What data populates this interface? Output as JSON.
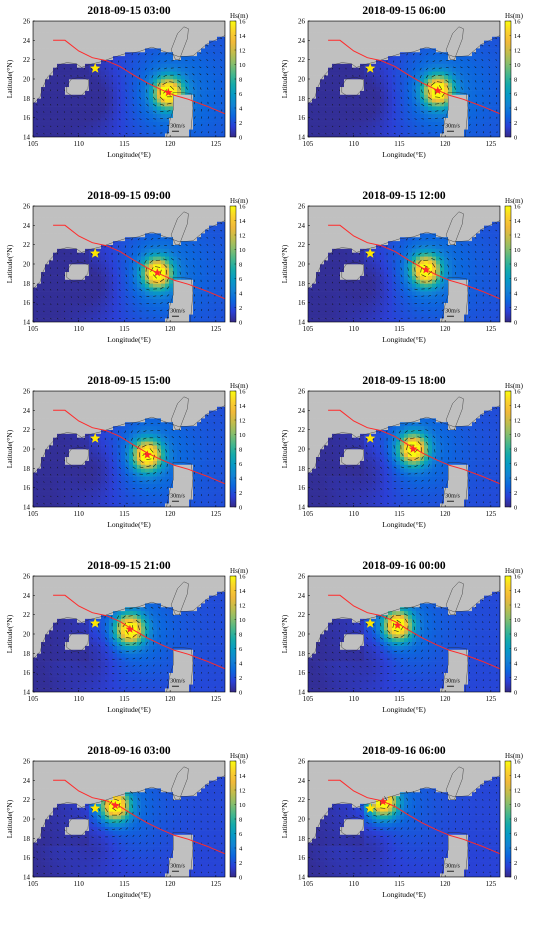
{
  "chart_data": [
    {
      "type": "heatmap",
      "title": "2018-09-15 03:00",
      "xlabel": "Longitude(°E)",
      "ylabel": "Latitude(°N)",
      "colorbar_label": "Hs(m)",
      "xlim": [
        105,
        126
      ],
      "ylim": [
        14,
        26
      ],
      "clim": [
        0,
        16
      ],
      "xticks": [
        105,
        110,
        115,
        120,
        125
      ],
      "yticks": [
        14,
        16,
        18,
        20,
        22,
        24,
        26
      ],
      "cticks": [
        0,
        2,
        4,
        6,
        8,
        10,
        12,
        14,
        16
      ],
      "vector_scale_label": "30m/s",
      "typhoon_center": [
        119.8,
        18.6
      ],
      "station": [
        111.8,
        21.1
      ]
    },
    {
      "type": "heatmap",
      "title": "2018-09-15 06:00",
      "xlabel": "Longitude(°E)",
      "ylabel": "Latitude(°N)",
      "colorbar_label": "Hs(m)",
      "xlim": [
        105,
        126
      ],
      "ylim": [
        14,
        26
      ],
      "clim": [
        0,
        16
      ],
      "xticks": [
        105,
        110,
        115,
        120,
        125
      ],
      "yticks": [
        14,
        16,
        18,
        20,
        22,
        24,
        26
      ],
      "cticks": [
        0,
        2,
        4,
        6,
        8,
        10,
        12,
        14,
        16
      ],
      "vector_scale_label": "30m/s",
      "typhoon_center": [
        119.2,
        18.8
      ],
      "station": [
        111.8,
        21.1
      ]
    },
    {
      "type": "heatmap",
      "title": "2018-09-15 09:00",
      "xlabel": "Longitude(°E)",
      "ylabel": "Latitude(°N)",
      "colorbar_label": "Hs(m)",
      "xlim": [
        105,
        126
      ],
      "ylim": [
        14,
        26
      ],
      "clim": [
        0,
        16
      ],
      "xticks": [
        105,
        110,
        115,
        120,
        125
      ],
      "yticks": [
        14,
        16,
        18,
        20,
        22,
        24,
        26
      ],
      "cticks": [
        0,
        2,
        4,
        6,
        8,
        10,
        12,
        14,
        16
      ],
      "vector_scale_label": "30m/s",
      "typhoon_center": [
        118.6,
        19.1
      ],
      "station": [
        111.8,
        21.1
      ]
    },
    {
      "type": "heatmap",
      "title": "2018-09-15 12:00",
      "xlabel": "Longitude(°E)",
      "ylabel": "Latitude(°N)",
      "colorbar_label": "Hs(m)",
      "xlim": [
        105,
        126
      ],
      "ylim": [
        14,
        26
      ],
      "clim": [
        0,
        16
      ],
      "xticks": [
        105,
        110,
        115,
        120,
        125
      ],
      "yticks": [
        14,
        16,
        18,
        20,
        22,
        24,
        26
      ],
      "cticks": [
        0,
        2,
        4,
        6,
        8,
        10,
        12,
        14,
        16
      ],
      "vector_scale_label": "30m/s",
      "typhoon_center": [
        117.9,
        19.4
      ],
      "station": [
        111.8,
        21.1
      ]
    },
    {
      "type": "heatmap",
      "title": "2018-09-15 15:00",
      "xlabel": "Longitude(°E)",
      "ylabel": "Latitude(°N)",
      "colorbar_label": "Hs(m)",
      "xlim": [
        105,
        126
      ],
      "ylim": [
        14,
        26
      ],
      "clim": [
        0,
        16
      ],
      "xticks": [
        105,
        110,
        115,
        120,
        125
      ],
      "yticks": [
        14,
        16,
        18,
        20,
        22,
        24,
        26
      ],
      "cticks": [
        0,
        2,
        4,
        6,
        8,
        10,
        12,
        14,
        16
      ],
      "vector_scale_label": "30m/s",
      "typhoon_center": [
        117.5,
        19.4
      ],
      "station": [
        111.8,
        21.1
      ]
    },
    {
      "type": "heatmap",
      "title": "2018-09-15 18:00",
      "xlabel": "Longitude(°E)",
      "ylabel": "Latitude(°N)",
      "colorbar_label": "Hs(m)",
      "xlim": [
        105,
        126
      ],
      "ylim": [
        14,
        26
      ],
      "clim": [
        0,
        16
      ],
      "xticks": [
        105,
        110,
        115,
        120,
        125
      ],
      "yticks": [
        14,
        16,
        18,
        20,
        22,
        24,
        26
      ],
      "cticks": [
        0,
        2,
        4,
        6,
        8,
        10,
        12,
        14,
        16
      ],
      "vector_scale_label": "30m/s",
      "typhoon_center": [
        116.5,
        20.0
      ],
      "station": [
        111.8,
        21.1
      ]
    },
    {
      "type": "heatmap",
      "title": "2018-09-15 21:00",
      "xlabel": "Longitude(°E)",
      "ylabel": "Latitude(°N)",
      "colorbar_label": "Hs(m)",
      "xlim": [
        105,
        126
      ],
      "ylim": [
        14,
        26
      ],
      "clim": [
        0,
        16
      ],
      "xticks": [
        105,
        110,
        115,
        120,
        125
      ],
      "yticks": [
        14,
        16,
        18,
        20,
        22,
        24,
        26
      ],
      "cticks": [
        0,
        2,
        4,
        6,
        8,
        10,
        12,
        14,
        16
      ],
      "vector_scale_label": "30m/s",
      "typhoon_center": [
        115.6,
        20.5
      ],
      "station": [
        111.8,
        21.1
      ]
    },
    {
      "type": "heatmap",
      "title": "2018-09-16 00:00",
      "xlabel": "Longitude(°E)",
      "ylabel": "Latitude(°N)",
      "colorbar_label": "Hs(m)",
      "xlim": [
        105,
        126
      ],
      "ylim": [
        14,
        26
      ],
      "clim": [
        0,
        16
      ],
      "xticks": [
        105,
        110,
        115,
        120,
        125
      ],
      "yticks": [
        14,
        16,
        18,
        20,
        22,
        24,
        26
      ],
      "cticks": [
        0,
        2,
        4,
        6,
        8,
        10,
        12,
        14,
        16
      ],
      "vector_scale_label": "30m/s",
      "typhoon_center": [
        114.8,
        20.9
      ],
      "station": [
        111.8,
        21.1
      ]
    },
    {
      "type": "heatmap",
      "title": "2018-09-16 03:00",
      "xlabel": "Longitude(°E)",
      "ylabel": "Latitude(°N)",
      "colorbar_label": "Hs(m)",
      "xlim": [
        105,
        126
      ],
      "ylim": [
        14,
        26
      ],
      "clim": [
        0,
        16
      ],
      "xticks": [
        105,
        110,
        115,
        120,
        125
      ],
      "yticks": [
        14,
        16,
        18,
        20,
        22,
        24,
        26
      ],
      "cticks": [
        0,
        2,
        4,
        6,
        8,
        10,
        12,
        14,
        16
      ],
      "vector_scale_label": "30m/s",
      "typhoon_center": [
        114.0,
        21.4
      ],
      "station": [
        111.8,
        21.1
      ]
    },
    {
      "type": "heatmap",
      "title": "2018-09-16 06:00",
      "xlabel": "Longitude(°E)",
      "ylabel": "Latitude(°N)",
      "colorbar_label": "Hs(m)",
      "xlim": [
        105,
        126
      ],
      "ylim": [
        14,
        26
      ],
      "clim": [
        0,
        16
      ],
      "xticks": [
        105,
        110,
        115,
        120,
        125
      ],
      "yticks": [
        14,
        16,
        18,
        20,
        22,
        24,
        26
      ],
      "cticks": [
        0,
        2,
        4,
        6,
        8,
        10,
        12,
        14,
        16
      ],
      "vector_scale_label": "30m/s",
      "typhoon_center": [
        113.2,
        21.8
      ],
      "station": [
        111.8,
        21.1
      ]
    }
  ],
  "typhoon_track": [
    [
      107.2,
      24.0
    ],
    [
      108.5,
      24.0
    ],
    [
      110.0,
      22.9
    ],
    [
      111.5,
      22.2
    ],
    [
      113.0,
      21.9
    ],
    [
      114.5,
      21.3
    ],
    [
      116.0,
      20.4
    ],
    [
      117.5,
      19.6
    ],
    [
      119.0,
      18.9
    ],
    [
      120.5,
      18.3
    ],
    [
      122.0,
      17.9
    ],
    [
      124.0,
      17.2
    ],
    [
      126.0,
      16.4
    ]
  ],
  "colors": {
    "land": "#c0c0c0",
    "track": "#ff2a2a",
    "station_star": "#ffe700",
    "center_star": "#ff2a2a",
    "coast_line": "#2a2a2a"
  }
}
